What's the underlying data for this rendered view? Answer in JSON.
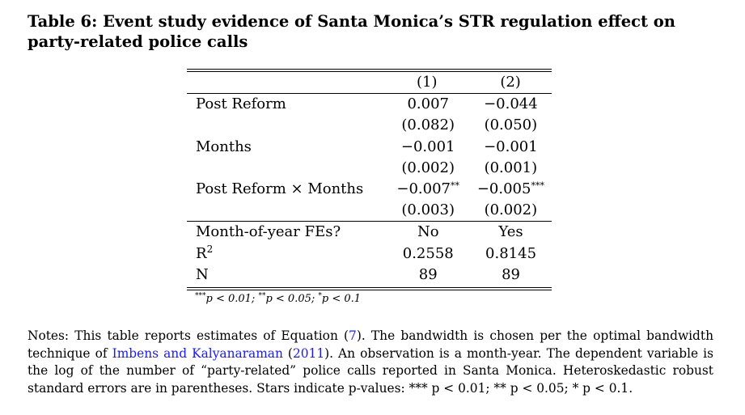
{
  "caption": {
    "label": "Table 6:",
    "text": "Event study evidence of Santa Monica’s STR regulation effect on party-related police calls"
  },
  "table": {
    "columns": [
      "(1)",
      "(2)"
    ],
    "rows": [
      {
        "label": "Post Reform",
        "coef": [
          "0.007",
          "−0.044"
        ],
        "stars": [
          "",
          ""
        ],
        "se": [
          "(0.082)",
          "(0.050)"
        ]
      },
      {
        "label": "Months",
        "coef": [
          "−0.001",
          "−0.001"
        ],
        "stars": [
          "",
          ""
        ],
        "se": [
          "(0.002)",
          "(0.001)"
        ]
      },
      {
        "label": "Post Reform × Months",
        "coef": [
          "−0.007",
          "−0.005"
        ],
        "stars": [
          "**",
          "***"
        ],
        "se": [
          "(0.003)",
          "(0.002)"
        ]
      }
    ],
    "stats": [
      {
        "label": "Month-of-year FEs?",
        "values": [
          "No",
          "Yes"
        ]
      },
      {
        "label_base": "R",
        "label_sup": "2",
        "values": [
          "0.2558",
          "0.8145"
        ]
      },
      {
        "label": "N",
        "values": [
          "89",
          "89"
        ]
      }
    ]
  },
  "significance_note": {
    "s1": "***",
    "t1": "p < 0.01; ",
    "s2": "**",
    "t2": "p < 0.05; ",
    "s3": "*",
    "t3": "p < 0.1"
  },
  "notes": {
    "part1": "Notes: This table reports estimates of Equation (",
    "eq_ref": "7",
    "part2": "). The bandwidth is chosen per the optimal bandwidth technique of ",
    "cite_authors": "Imbens and Kalyanaraman",
    "part3": " (",
    "cite_year": "2011",
    "part4": "). An observation is a month-year. The dependent variable is the log of the number of “party-related” police calls reported in Santa Monica. Heteroskedastic robust standard errors are in parentheses. Stars indicate p-values: *** p < 0.01; ** p < 0.05; * p < 0.1."
  },
  "colors": {
    "text": "#000000",
    "link": "#1a1aff",
    "background": "#ffffff"
  }
}
